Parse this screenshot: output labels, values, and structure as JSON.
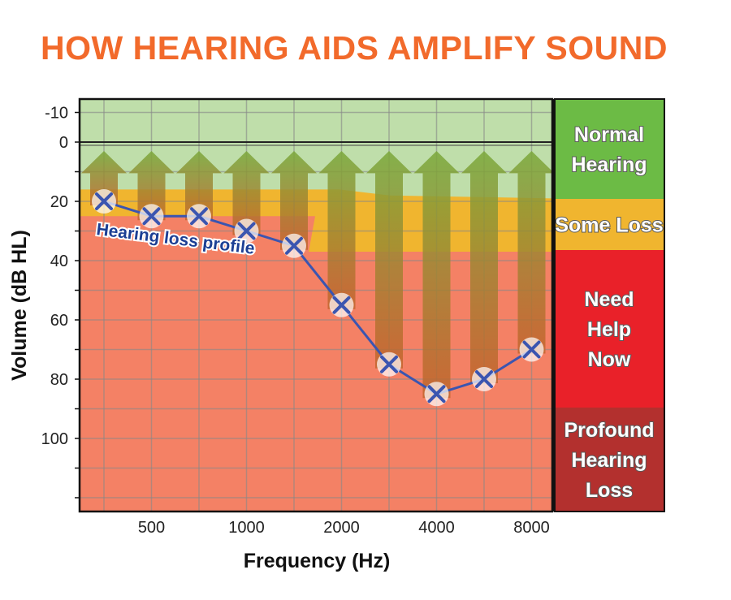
{
  "chart_data": {
    "type": "line",
    "title": "HOW HEARING AIDS AMPLIFY SOUND",
    "xlabel": "Frequency (Hz)",
    "ylabel": "Volume  (dB HL)",
    "x": [
      250,
      500,
      750,
      1000,
      1500,
      2000,
      3000,
      4000,
      6000,
      8000
    ],
    "x_tick_labels": [
      "500",
      "1000",
      "2000",
      "4000",
      "8000"
    ],
    "x_tick_values": [
      500,
      1000,
      2000,
      4000,
      8000
    ],
    "y_tick_labels": [
      "-10",
      "0",
      "20",
      "40",
      "60",
      "80",
      "100"
    ],
    "y_tick_values": [
      -10,
      0,
      20,
      40,
      60,
      80,
      100
    ],
    "ylim": [
      -10,
      125
    ],
    "y_inverted": true,
    "series": [
      {
        "name": "Hearing loss profile",
        "values": [
          20,
          25,
          25,
          30,
          35,
          55,
          75,
          85,
          80,
          70
        ]
      }
    ],
    "annotation": "Hearing loss profile",
    "zones": [
      {
        "label": "Normal Hearing",
        "lines": [
          "Normal",
          "Hearing"
        ],
        "color": "#6cbb45"
      },
      {
        "label": "Some Loss",
        "lines": [
          "Some Loss"
        ],
        "color": "#f0b52f"
      },
      {
        "label": "Need Help Now",
        "lines": [
          "Need",
          "Help",
          "Now"
        ],
        "color": "#e92129"
      },
      {
        "label": "Profound Hearing Loss",
        "lines": [
          "Profound",
          "Hearing",
          "Loss"
        ],
        "color": "#b3302e"
      }
    ],
    "grid": true
  },
  "colors": {
    "title": "#f26a2b",
    "line": "#3b55b0",
    "green_bg": "#bfdeaa",
    "yellow_bg": "#f0b52f",
    "red_bg": "#f48165",
    "arrow": "#7aa83a"
  }
}
